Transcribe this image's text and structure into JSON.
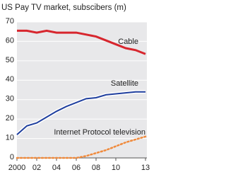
{
  "chart_data": {
    "type": "line",
    "title": "US Pay TV market, subscibers (m)",
    "x": [
      2000,
      2001,
      2002,
      2003,
      2004,
      2005,
      2006,
      2007,
      2008,
      2009,
      2010,
      2011,
      2012,
      2013
    ],
    "xlim": [
      2000,
      2013
    ],
    "xticks": [
      {
        "value": 2000,
        "label": "2000"
      },
      {
        "value": 2002,
        "label": "02"
      },
      {
        "value": 2004,
        "label": "04"
      },
      {
        "value": 2006,
        "label": "06"
      },
      {
        "value": 2008,
        "label": "08"
      },
      {
        "value": 2010,
        "label": "10"
      },
      {
        "value": 2013,
        "label": "13"
      }
    ],
    "ylim": [
      0,
      70
    ],
    "yticks": [
      0,
      10,
      20,
      30,
      40,
      50,
      60,
      70
    ],
    "grid": true,
    "series": [
      {
        "name": "Cable",
        "color": "#d7262e",
        "values": [
          65.5,
          65.5,
          64.5,
          65.5,
          64.5,
          64.5,
          64.5,
          63.5,
          62.5,
          60.5,
          58.5,
          56.5,
          55.5,
          53.5
        ]
      },
      {
        "name": "Satellite",
        "color": "#1f3f9e",
        "values": [
          12,
          16.5,
          18,
          21,
          24,
          26.5,
          28.5,
          30.5,
          31,
          32.5,
          33,
          33.5,
          34,
          34
        ]
      },
      {
        "name": "Internet Protocol television",
        "color": "#f08a3c",
        "values": [
          0,
          0,
          0,
          0,
          0,
          0,
          0,
          1,
          2.5,
          4,
          6,
          8,
          9.5,
          11
        ]
      }
    ]
  }
}
